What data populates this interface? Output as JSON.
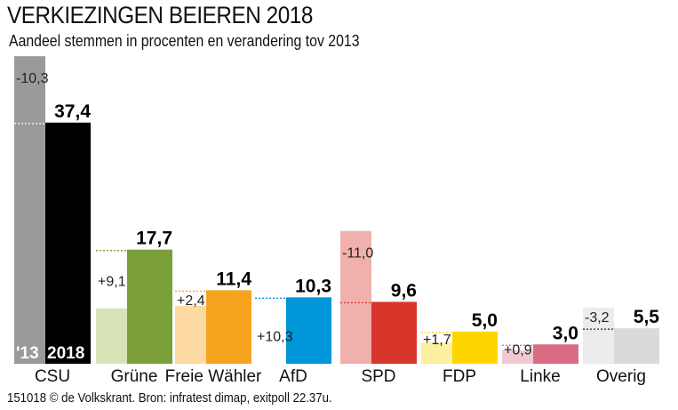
{
  "title": "VERKIEZINGEN BEIEREN 2018",
  "subtitle": "Aandeel stemmen in procenten en verandering tov 2013",
  "footer": "151018 © de Volkskrant. Bron: infratest dimap,  exitpoll 22.37u.",
  "chart_data": {
    "type": "bar",
    "title": "VERKIEZINGEN BEIEREN 2018",
    "series_labels": [
      "'13",
      "2018"
    ],
    "categories": [
      "CSU",
      "Grüne",
      "Freie Wähler",
      "AfD",
      "SPD",
      "FDP",
      "Linke",
      "Overig"
    ],
    "series": [
      {
        "name": "'13",
        "values": [
          47.7,
          8.6,
          9.0,
          0,
          20.6,
          3.3,
          2.1,
          8.7
        ]
      },
      {
        "name": "2018",
        "values": [
          37.4,
          17.7,
          11.4,
          10.3,
          9.6,
          5.0,
          3.0,
          5.5
        ]
      }
    ],
    "value_labels": [
      "37,4",
      "17,7",
      "11,4",
      "10,3",
      "9,6",
      "5,0",
      "3,0",
      "5,5"
    ],
    "change_labels": [
      "-10,3",
      "+9,1",
      "+2,4",
      "+10,3",
      "-11,0",
      "+1,7",
      "+0,9",
      "-3,2"
    ],
    "colors_2013": [
      "#9a9a9a",
      "#d6e4b8",
      "#fddaa2",
      "#ffffff",
      "#f0b0ab",
      "#fdf0a0",
      "#f2c8d2",
      "#ececec"
    ],
    "colors_2018": [
      "#000000",
      "#7b9f3b",
      "#f6a31f",
      "#0096da",
      "#d8362a",
      "#ffd500",
      "#d96c83",
      "#dadada"
    ],
    "ylim": [
      0,
      50
    ]
  }
}
